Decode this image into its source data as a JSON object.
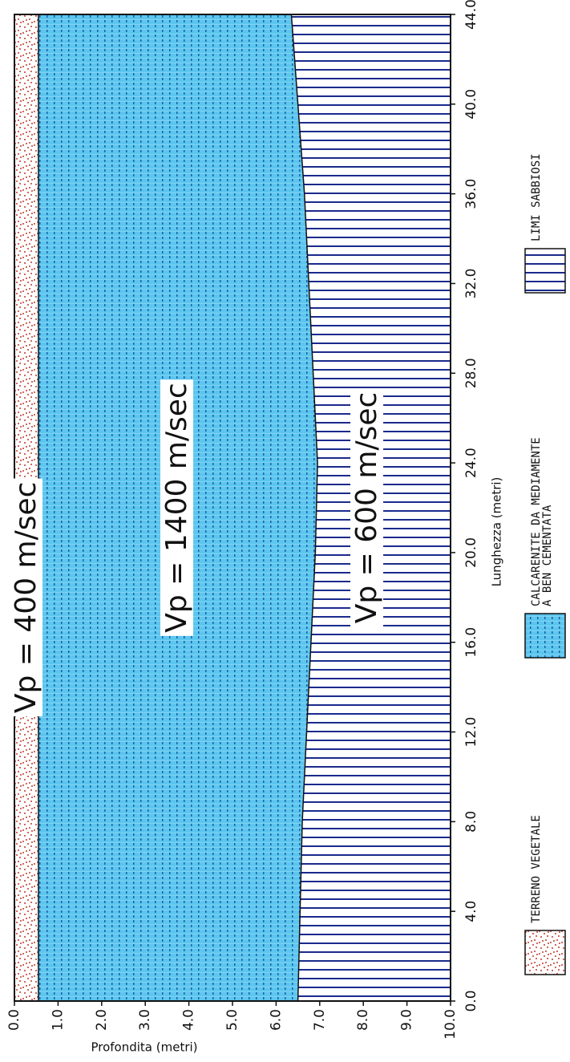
{
  "chart_data": {
    "type": "layered-section",
    "xlabel": "Lunghezza (metri)",
    "ylabel": "Profondita (metri)",
    "x": [
      0,
      4,
      8,
      12,
      16,
      20,
      24,
      28,
      32,
      36,
      40,
      44
    ],
    "xlim": [
      0,
      44
    ],
    "xticks": [
      {
        "value": 0,
        "label": "0.0"
      },
      {
        "value": 4,
        "label": "4.0"
      },
      {
        "value": 8,
        "label": "8.0"
      },
      {
        "value": 12,
        "label": "12.0"
      },
      {
        "value": 16,
        "label": "16.0"
      },
      {
        "value": 20,
        "label": "20.0"
      },
      {
        "value": 24,
        "label": "24.0"
      },
      {
        "value": 28,
        "label": "28.0"
      },
      {
        "value": 32,
        "label": "32.0"
      },
      {
        "value": 36,
        "label": "36.0"
      },
      {
        "value": 40,
        "label": "40.0"
      },
      {
        "value": 44,
        "label": "44.0"
      }
    ],
    "ylim": [
      0,
      10
    ],
    "yticks": [
      {
        "value": 0,
        "label": "0.0"
      },
      {
        "value": 1,
        "label": "1.0"
      },
      {
        "value": 2,
        "label": "2.0"
      },
      {
        "value": 3,
        "label": "3.0"
      },
      {
        "value": 4,
        "label": "4.0"
      },
      {
        "value": 5,
        "label": "5.0"
      },
      {
        "value": 6,
        "label": "6.0"
      },
      {
        "value": 7,
        "label": "7.0"
      },
      {
        "value": 8,
        "label": "8.0"
      },
      {
        "value": 9,
        "label": "9.0"
      },
      {
        "value": 10,
        "label": "10.0"
      }
    ],
    "series": [
      {
        "name": "TERRENO VEGETALE",
        "color": "#c0392b",
        "label": "Vp = 400  m/sec",
        "values": [
          0.55,
          0.55,
          0.55,
          0.55,
          0.55,
          0.55,
          0.55,
          0.55,
          0.55,
          0.55,
          0.55,
          0.55
        ]
      },
      {
        "name": "CALCARENITE DA MEDIAMENTE\nA BEN CEMENTATA",
        "color": "#5cc6ee",
        "label": "Vp = 1400  m/sec",
        "values": [
          6.5,
          6.55,
          6.6,
          6.7,
          6.8,
          6.9,
          6.95,
          6.85,
          6.75,
          6.65,
          6.5,
          6.35
        ]
      },
      {
        "name": "LIMI SABBIOSI",
        "color": "#1a2a8c",
        "label": "Vp = 600  m/sec"
      }
    ]
  }
}
